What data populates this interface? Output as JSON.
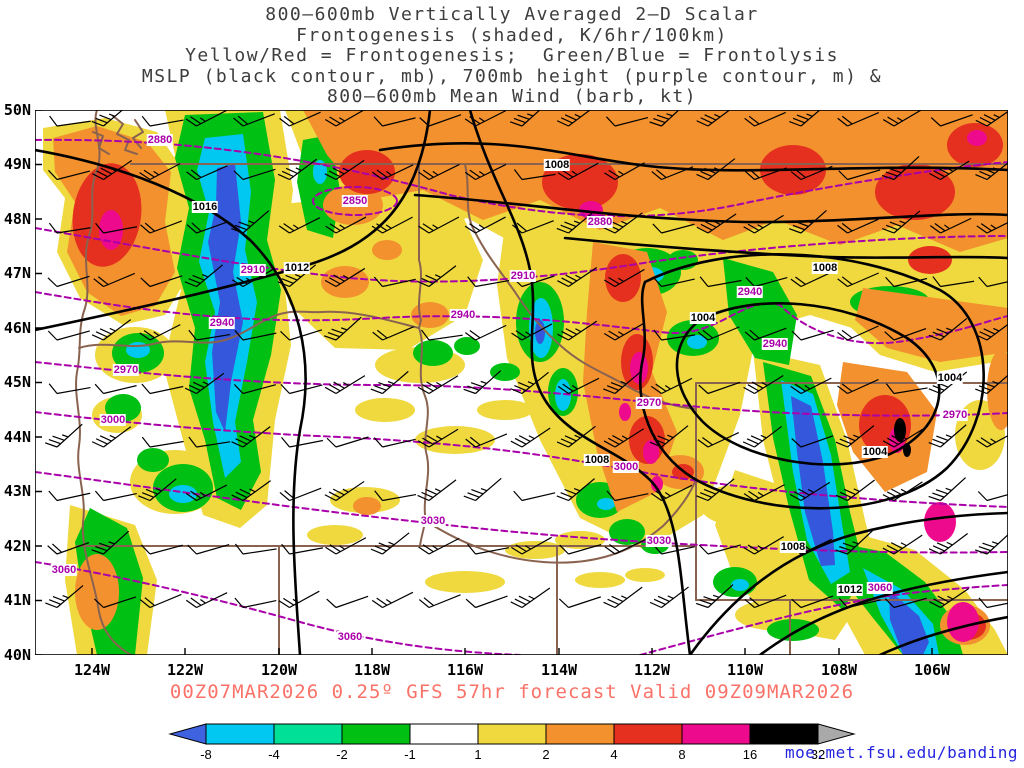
{
  "title": {
    "lines": [
      "800–600mb Vertically Averaged 2–D Scalar",
      "Frontogenesis (shaded, K/6hr/100km)",
      "Yellow/Red = Frontogenesis;  Green/Blue = Frontolysis",
      "MSLP (black contour, mb), 700mb height (purple contour, m) &",
      "800–600mb Mean Wind (barb, kt)"
    ]
  },
  "axes": {
    "lat": [
      "50N",
      "49N",
      "48N",
      "47N",
      "46N",
      "45N",
      "44N",
      "43N",
      "42N",
      "41N",
      "40N"
    ],
    "lon": [
      "124W",
      "122W",
      "120W",
      "118W",
      "116W",
      "114W",
      "112W",
      "110W",
      "108W",
      "106W"
    ]
  },
  "labels": {
    "mslp": [
      "1016",
      "1012",
      "1008",
      "1008",
      "1004",
      "1004",
      "1004",
      "1008",
      "1012",
      "1008"
    ],
    "height": [
      "2880",
      "2850",
      "2880",
      "2910",
      "2910",
      "2940",
      "2940",
      "2940",
      "2940",
      "2970",
      "2970",
      "2970",
      "3000",
      "3000",
      "3030",
      "3030",
      "3060",
      "3060",
      "3060"
    ]
  },
  "map_colors": {
    "mslp_contour": "#000000",
    "height_contour": "#AA00AA",
    "state_border": "#8A6350",
    "wind_barb": "#000000"
  },
  "caption": "00Z07MAR2026 0.25º GFS 57hr forecast Valid 09Z09MAR2026",
  "colorbar": {
    "tick_labels": [
      "-8",
      "-4",
      "-2",
      "-1",
      "1",
      "2",
      "4",
      "8",
      "16",
      "32"
    ],
    "below_min_arrow_color": "#3E62E0",
    "segment_colors": [
      "#00C8F0",
      "#00E096",
      "#00C013",
      "#FFFFFF",
      "#EFD93F",
      "#F2912E",
      "#E5301F",
      "#EE0A8C",
      "#000000"
    ],
    "above_max_arrow_color": "#A9A9A9"
  },
  "credit": "moe.met.fsu.edu/banding"
}
